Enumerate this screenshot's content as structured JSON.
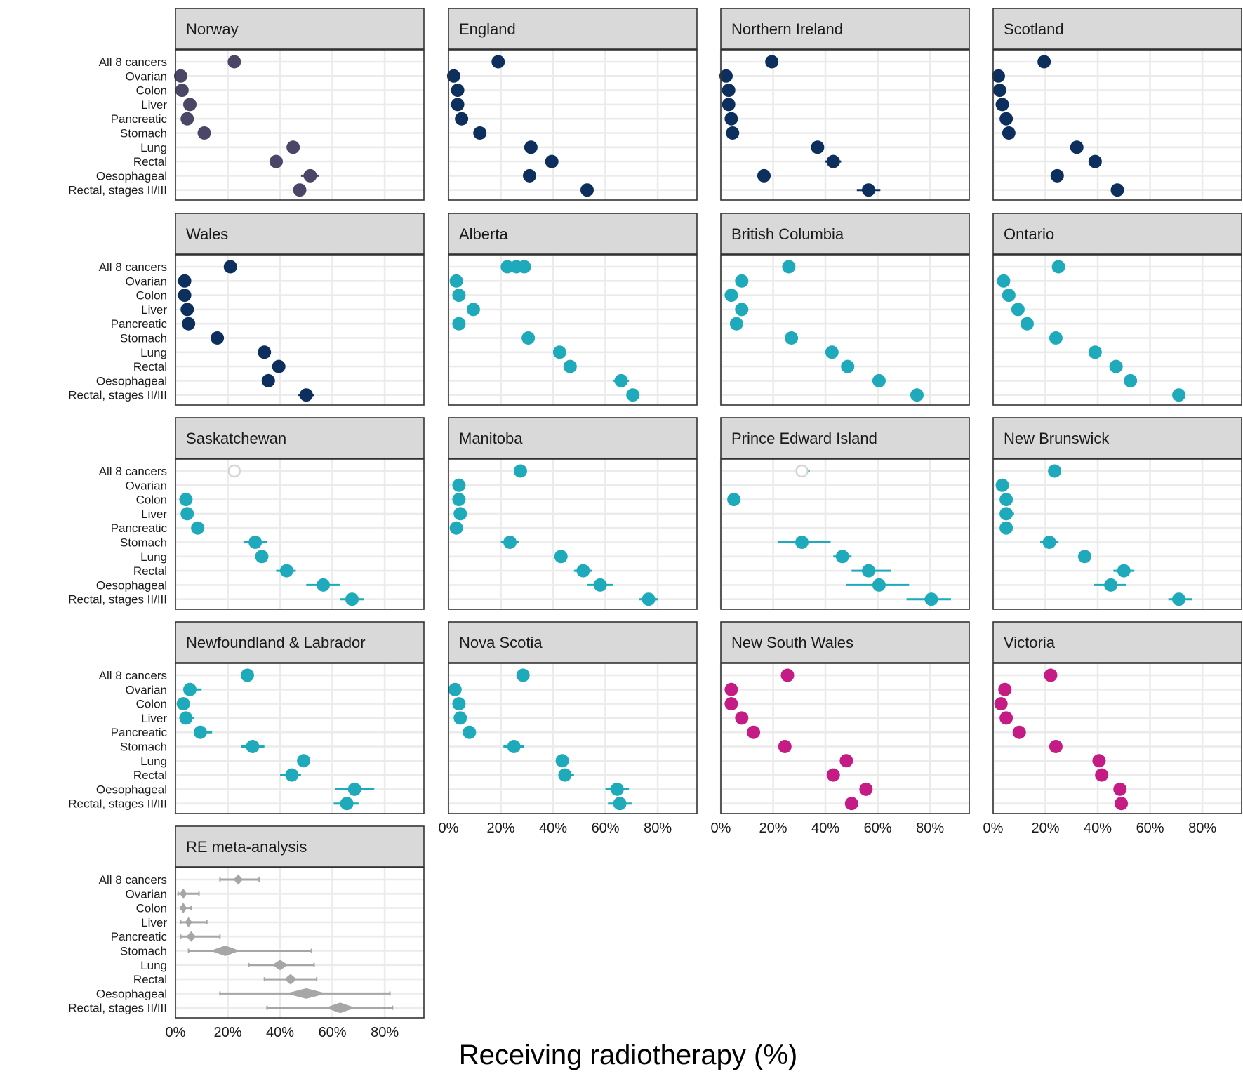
{
  "chart_data": {
    "type": "scatter",
    "title": "",
    "xlabel": "Receiving radiotherapy (%)",
    "ylabel": "",
    "xlim": [
      0,
      95
    ],
    "x_ticks": [
      "0%",
      "20%",
      "40%",
      "60%",
      "80%"
    ],
    "x_tick_values": [
      0,
      20,
      40,
      60,
      80
    ],
    "grid": true,
    "legend": "none",
    "categories": [
      "All 8 cancers",
      "Ovarian",
      "Colon",
      "Liver",
      "Pancreatic",
      "Stomach",
      "Lung",
      "Rectal",
      "Oesophageal",
      "Rectal, stages II/III"
    ],
    "colors": {
      "norway": "#4a4668",
      "uk": "#0d2f5e",
      "canada": "#1faabb",
      "australia": "#c41b84",
      "meta": "#a6a6a6",
      "strip_fill": "#d9d9d9",
      "grid": "#ebebeb",
      "frame": "#333333"
    },
    "panels": [
      {
        "name": "Norway",
        "color": "#4a4668",
        "points": [
          {
            "x": 22.5
          },
          {
            "x": 2
          },
          {
            "x": 2.5
          },
          {
            "x": 5.5
          },
          {
            "x": 4.5
          },
          {
            "x": 11
          },
          {
            "x": 45
          },
          {
            "x": 38.5
          },
          {
            "x": 51.5,
            "lo": 48,
            "hi": 55
          },
          {
            "x": 47.5
          }
        ]
      },
      {
        "name": "England",
        "color": "#0d2f5e",
        "points": [
          {
            "x": 19
          },
          {
            "x": 2
          },
          {
            "x": 3.5
          },
          {
            "x": 3.5
          },
          {
            "x": 5
          },
          {
            "x": 12
          },
          {
            "x": 31.5
          },
          {
            "x": 39.5
          },
          {
            "x": 31
          },
          {
            "x": 53
          }
        ]
      },
      {
        "name": "Northern Ireland",
        "color": "#0d2f5e",
        "points": [
          {
            "x": 19.5
          },
          {
            "x": 2
          },
          {
            "x": 3
          },
          {
            "x": 3
          },
          {
            "x": 4
          },
          {
            "x": 4.5
          },
          {
            "x": 37
          },
          {
            "x": 43,
            "lo": 40,
            "hi": 46
          },
          {
            "x": 16.5,
            "lo": 14,
            "hi": 19
          },
          {
            "x": 56.5,
            "lo": 52,
            "hi": 61
          }
        ]
      },
      {
        "name": "Scotland",
        "color": "#0d2f5e",
        "points": [
          {
            "x": 19.5
          },
          {
            "x": 2
          },
          {
            "x": 2.5
          },
          {
            "x": 3.5
          },
          {
            "x": 5
          },
          {
            "x": 6
          },
          {
            "x": 32
          },
          {
            "x": 39
          },
          {
            "x": 24.5
          },
          {
            "x": 47.5
          }
        ]
      },
      {
        "name": "Wales",
        "color": "#0d2f5e",
        "points": [
          {
            "x": 21
          },
          {
            "x": 3.5
          },
          {
            "x": 3.5
          },
          {
            "x": 4.5
          },
          {
            "x": 5
          },
          {
            "x": 16
          },
          {
            "x": 34
          },
          {
            "x": 39.5
          },
          {
            "x": 35.5
          },
          {
            "x": 50,
            "lo": 47,
            "hi": 53
          }
        ]
      },
      {
        "name": "Alberta",
        "color": "#1faabb",
        "points": [
          {
            "x": 26,
            "extra": [
              22.5,
              29
            ]
          },
          {
            "x": 3
          },
          {
            "x": 4
          },
          {
            "x": 9.5
          },
          {
            "x": 4
          },
          {
            "x": 30.5,
            "lo": 28,
            "hi": 33
          },
          {
            "x": 42.5
          },
          {
            "x": 46.5
          },
          {
            "x": 66,
            "lo": 63,
            "hi": 69
          },
          {
            "x": 70.5
          }
        ]
      },
      {
        "name": "British Columbia",
        "color": "#1faabb",
        "points": [
          {
            "x": 26
          },
          {
            "x": 8
          },
          {
            "x": 4
          },
          {
            "x": 8
          },
          {
            "x": 6
          },
          {
            "x": 27
          },
          {
            "x": 42.5
          },
          {
            "x": 48.5
          },
          {
            "x": 60.5,
            "lo": 58,
            "hi": 63
          },
          {
            "x": 75
          }
        ]
      },
      {
        "name": "Ontario",
        "color": "#1faabb",
        "points": [
          {
            "x": 25
          },
          {
            "x": 4
          },
          {
            "x": 6
          },
          {
            "x": 9.5
          },
          {
            "x": 13
          },
          {
            "x": 24
          },
          {
            "x": 39
          },
          {
            "x": 47
          },
          {
            "x": 52.5
          },
          {
            "x": 71
          }
        ]
      },
      {
        "name": "Saskatchewan",
        "color": "#1faabb",
        "points": [
          {
            "x": 22.5,
            "hollow": true
          },
          {
            "x": null
          },
          {
            "x": 4
          },
          {
            "x": 4.5,
            "lo": 3,
            "hi": 7
          },
          {
            "x": 8.5
          },
          {
            "x": 30.5,
            "lo": 26,
            "hi": 35
          },
          {
            "x": 33
          },
          {
            "x": 42.5,
            "lo": 38.5,
            "hi": 46
          },
          {
            "x": 56.5,
            "lo": 50,
            "hi": 63
          },
          {
            "x": 67.5,
            "lo": 63,
            "hi": 72
          }
        ]
      },
      {
        "name": "Manitoba",
        "color": "#1faabb",
        "points": [
          {
            "x": 27.5
          },
          {
            "x": 4
          },
          {
            "x": 4
          },
          {
            "x": 4.5
          },
          {
            "x": 3
          },
          {
            "x": 23.5,
            "lo": 20,
            "hi": 27
          },
          {
            "x": 43
          },
          {
            "x": 51.5,
            "lo": 48,
            "hi": 55
          },
          {
            "x": 58,
            "lo": 53,
            "hi": 63
          },
          {
            "x": 76.5,
            "lo": 73,
            "hi": 80
          }
        ]
      },
      {
        "name": "Prince Edward Island",
        "color": "#1faabb",
        "points": [
          {
            "x": 31,
            "hollow": true,
            "lo": 29,
            "hi": 34
          },
          {
            "x": null
          },
          {
            "x": 5
          },
          {
            "x": null
          },
          {
            "x": null
          },
          {
            "x": 31,
            "lo": 22,
            "hi": 42
          },
          {
            "x": 46.5,
            "lo": 43,
            "hi": 50
          },
          {
            "x": 56.5,
            "lo": 50,
            "hi": 65
          },
          {
            "x": 60.5,
            "lo": 48,
            "hi": 72
          },
          {
            "x": 80.5,
            "lo": 71,
            "hi": 88
          }
        ]
      },
      {
        "name": "New Brunswick",
        "color": "#1faabb",
        "points": [
          {
            "x": 23.5
          },
          {
            "x": 3.5,
            "lo": 2,
            "hi": 6
          },
          {
            "x": 5
          },
          {
            "x": 5,
            "lo": 3,
            "hi": 8
          },
          {
            "x": 5
          },
          {
            "x": 21.5,
            "lo": 18,
            "hi": 25
          },
          {
            "x": 35
          },
          {
            "x": 50,
            "lo": 46,
            "hi": 54
          },
          {
            "x": 45,
            "lo": 38.5,
            "hi": 51
          },
          {
            "x": 71,
            "lo": 67,
            "hi": 76
          }
        ]
      },
      {
        "name": "Newfoundland & Labrador",
        "color": "#1faabb",
        "points": [
          {
            "x": 27.5
          },
          {
            "x": 5.5,
            "lo": 3,
            "hi": 10
          },
          {
            "x": 3
          },
          {
            "x": 4,
            "lo": 2,
            "hi": 7
          },
          {
            "x": 9.5,
            "lo": 7,
            "hi": 14
          },
          {
            "x": 29.5,
            "lo": 25,
            "hi": 34
          },
          {
            "x": 49
          },
          {
            "x": 44.5,
            "lo": 40,
            "hi": 48
          },
          {
            "x": 68.5,
            "lo": 61,
            "hi": 76
          },
          {
            "x": 65.5,
            "lo": 60.5,
            "hi": 70
          }
        ]
      },
      {
        "name": "Nova Scotia",
        "color": "#1faabb",
        "points": [
          {
            "x": 28.5
          },
          {
            "x": 2.5
          },
          {
            "x": 4
          },
          {
            "x": 4.5
          },
          {
            "x": 8
          },
          {
            "x": 25,
            "lo": 21,
            "hi": 29
          },
          {
            "x": 43.5
          },
          {
            "x": 44.5,
            "lo": 42,
            "hi": 48
          },
          {
            "x": 64.5,
            "lo": 60,
            "hi": 69
          },
          {
            "x": 65.5,
            "lo": 61,
            "hi": 70
          }
        ]
      },
      {
        "name": "New South Wales",
        "color": "#c41b84",
        "points": [
          {
            "x": 25.5
          },
          {
            "x": 4
          },
          {
            "x": 4
          },
          {
            "x": 8
          },
          {
            "x": 12.5
          },
          {
            "x": 24.5
          },
          {
            "x": 48
          },
          {
            "x": 43
          },
          {
            "x": 55.5
          },
          {
            "x": 50
          }
        ]
      },
      {
        "name": "Victoria",
        "color": "#c41b84",
        "points": [
          {
            "x": 22
          },
          {
            "x": 4.5
          },
          {
            "x": 3
          },
          {
            "x": 5
          },
          {
            "x": 10
          },
          {
            "x": 24
          },
          {
            "x": 40.5
          },
          {
            "x": 41.5
          },
          {
            "x": 48.5
          },
          {
            "x": 49
          }
        ]
      },
      {
        "name": "RE meta-analysis",
        "color": "#a6a6a6",
        "meta": true,
        "points": [
          {
            "x": 24,
            "lo": 17,
            "hi": 32
          },
          {
            "x": 3,
            "lo": 1,
            "hi": 9
          },
          {
            "x": 3,
            "lo": 2,
            "hi": 6
          },
          {
            "x": 5,
            "lo": 2,
            "hi": 12
          },
          {
            "x": 6,
            "lo": 2,
            "hi": 17
          },
          {
            "x": 19,
            "lo": 5,
            "hi": 52
          },
          {
            "x": 40,
            "lo": 28,
            "hi": 53
          },
          {
            "x": 44,
            "lo": 34,
            "hi": 54
          },
          {
            "x": 50,
            "lo": 17,
            "hi": 82
          },
          {
            "x": 63,
            "lo": 35,
            "hi": 83
          }
        ]
      }
    ]
  }
}
